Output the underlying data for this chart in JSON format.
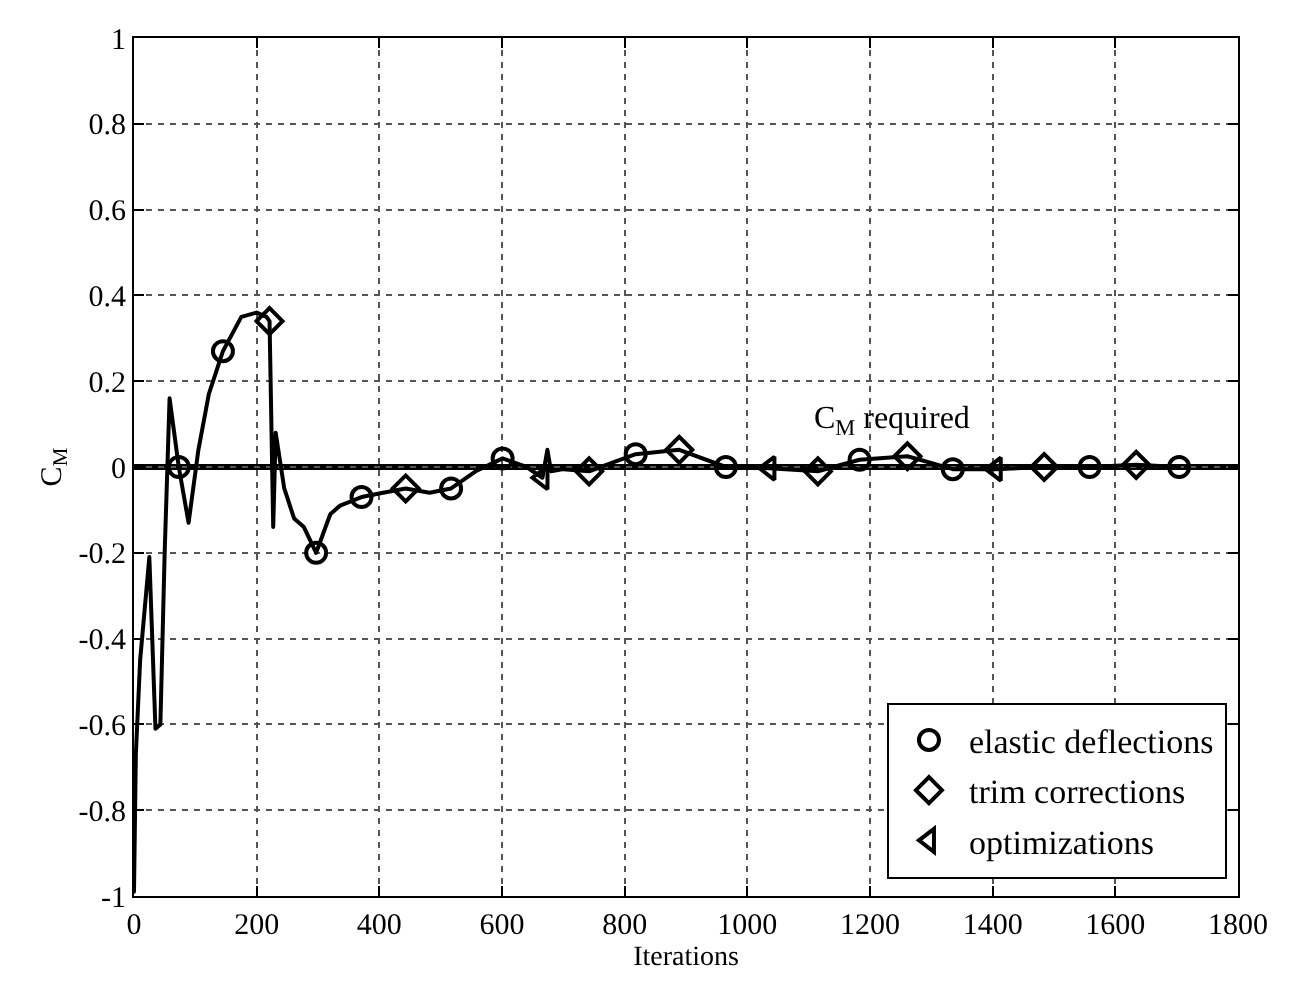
{
  "chart_data": {
    "type": "line",
    "xlabel": "Iterations",
    "ylabel": "C$_{M}$",
    "xlim": [
      0,
      1800
    ],
    "ylim": [
      -1,
      1
    ],
    "xticks": [
      0,
      200,
      400,
      600,
      800,
      1000,
      1200,
      1400,
      1600,
      1800
    ],
    "yticks": [
      -1,
      -0.8,
      -0.6,
      -0.4,
      -0.2,
      0,
      0.2,
      0.4,
      0.6,
      0.8,
      1
    ],
    "grid": true,
    "legend": "bottom right",
    "ref_lines": [
      {
        "axis": "y",
        "value": 0,
        "label": "C$_{M}$ required",
        "color": "#000000"
      }
    ],
    "series": [
      {
        "type": "line",
        "color": "#000000",
        "marker": "none",
        "line_style": "solid",
        "x": [
          0,
          3,
          10,
          25,
          35,
          43,
          50,
          58,
          73,
          89,
          105,
          122,
          145,
          175,
          200,
          216,
          221,
          227,
          231,
          245,
          261,
          277,
          297,
          320,
          336,
          371,
          406,
          443,
          482,
          517,
          557,
          601,
          640,
          666,
          674,
          680,
          700,
          742,
          780,
          818,
          889,
          965,
          1036,
          1115,
          1183,
          1261,
          1335,
          1405,
          1484,
          1558,
          1634,
          1704
        ],
        "values": [
          -0.99,
          -0.67,
          -0.45,
          -0.21,
          -0.61,
          -0.6,
          -0.2,
          0.16,
          0.0,
          -0.13,
          0.04,
          0.17,
          0.27,
          0.35,
          0.36,
          0.35,
          0.34,
          -0.14,
          0.08,
          -0.05,
          -0.12,
          -0.14,
          -0.2,
          -0.11,
          -0.09,
          -0.07,
          -0.06,
          -0.05,
          -0.06,
          -0.05,
          -0.01,
          0.02,
          0.0,
          -0.025,
          0.04,
          -0.01,
          -0.005,
          -0.01,
          0.01,
          0.03,
          0.04,
          0.0,
          -0.003,
          -0.01,
          0.017,
          0.025,
          -0.005,
          -0.005,
          0.0,
          0.0,
          0.005,
          0.0
        ]
      },
      {
        "type": "scatter",
        "name": "elastic deflections",
        "color": "#000000",
        "marker": "circle",
        "x": [
          73,
          145,
          297,
          371,
          517,
          601,
          818,
          965,
          1183,
          1335,
          1558,
          1704
        ],
        "values": [
          0.0,
          0.27,
          -0.2,
          -0.07,
          -0.05,
          0.02,
          0.03,
          0.0,
          0.017,
          -0.005,
          0.0,
          0.0
        ]
      },
      {
        "type": "scatter",
        "name": "trim corrections",
        "color": "#000000",
        "marker": "diamond",
        "x": [
          221,
          443,
          742,
          889,
          1115,
          1261,
          1484,
          1634
        ],
        "values": [
          0.34,
          -0.05,
          -0.01,
          0.04,
          -0.01,
          0.025,
          0.0,
          0.005
        ]
      },
      {
        "type": "scatter",
        "name": "optimizations",
        "color": "#000000",
        "marker": "triangle",
        "x": [
          666,
          1036,
          1405
        ],
        "values": [
          -0.025,
          -0.003,
          -0.005
        ]
      }
    ]
  }
}
